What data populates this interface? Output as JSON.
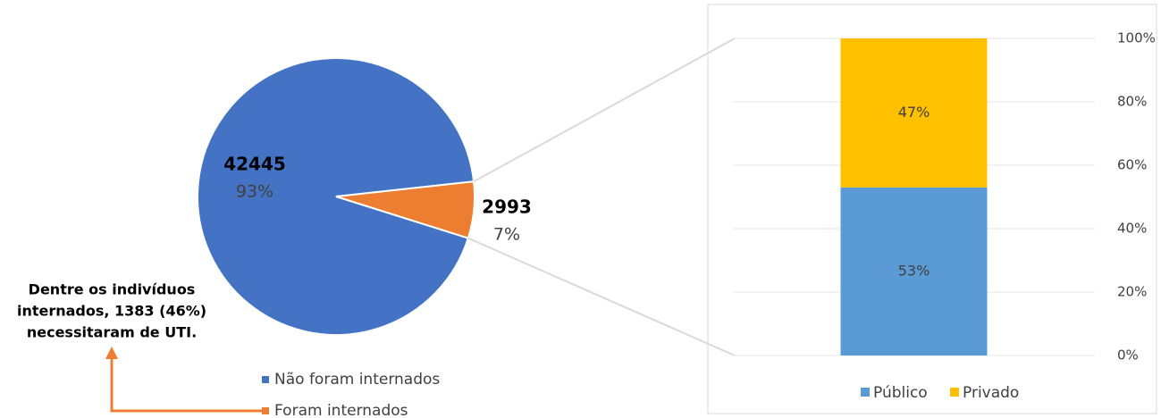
{
  "chart_data": [
    {
      "type": "pie",
      "categories": [
        "Não foram internados",
        "Foram internados"
      ],
      "values": [
        42445,
        2993
      ],
      "percent_labels": [
        "93%",
        "7%"
      ],
      "colors": [
        "#4472c4",
        "#ed7d31"
      ],
      "annotation": [
        "Dentre os indivíduos",
        "internados, 1383 (46%)",
        "necessitaram de UTI."
      ],
      "legend": "bottom"
    },
    {
      "type": "bar",
      "stacked": true,
      "categories": [
        null
      ],
      "series": [
        {
          "name": "Público",
          "color": "#5b9bd5",
          "values": [
            53
          ],
          "value_labels": [
            "53%"
          ]
        },
        {
          "name": "Privado",
          "color": "#ffc000",
          "values": [
            47
          ],
          "value_labels": [
            "47%"
          ]
        }
      ],
      "ylim": [
        0,
        100
      ],
      "yticks": [
        {
          "value": 0,
          "label": "0%"
        },
        {
          "value": 20,
          "label": "20%"
        },
        {
          "value": 40,
          "label": "40%"
        },
        {
          "value": 60,
          "label": "60%"
        },
        {
          "value": 80,
          "label": "80%"
        },
        {
          "value": 100,
          "label": "100%"
        }
      ],
      "grid": true,
      "legend": "bottom"
    }
  ]
}
